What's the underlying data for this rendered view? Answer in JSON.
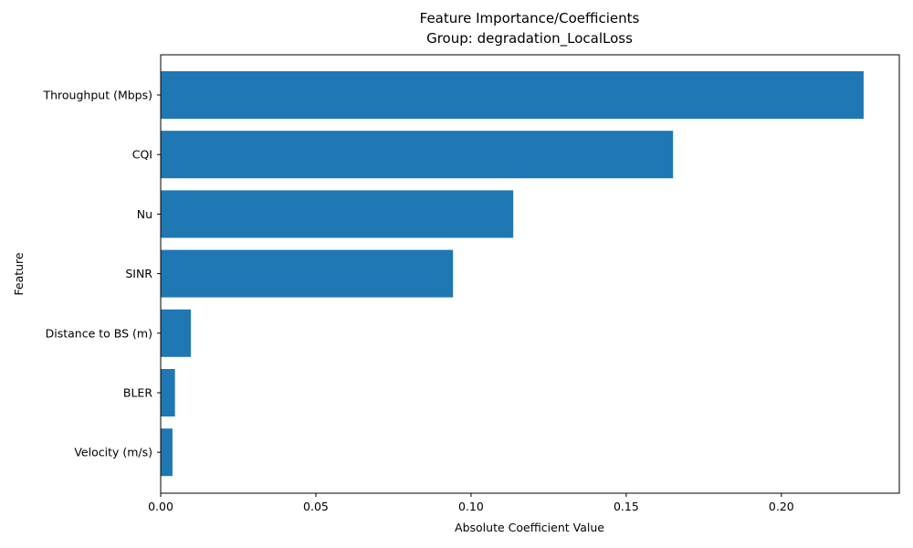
{
  "chart_data": {
    "type": "bar",
    "orientation": "horizontal",
    "title": "Feature Importance/Coefficients",
    "subtitle": "Group: degradation_LocalLoss",
    "xlabel": "Absolute Coefficient Value",
    "ylabel": "Feature",
    "categories": [
      "Throughput (Mbps)",
      "CQI",
      "Nu",
      "SINR",
      "Distance to BS (m)",
      "BLER",
      "Velocity (m/s)"
    ],
    "values": [
      0.2265,
      0.1651,
      0.1136,
      0.0942,
      0.0097,
      0.0046,
      0.0038
    ],
    "xlim": [
      0,
      0.238
    ],
    "xticks": [
      0.0,
      0.05,
      0.1,
      0.15,
      0.2
    ],
    "xtick_labels": [
      "0.00",
      "0.05",
      "0.10",
      "0.15",
      "0.20"
    ],
    "bar_color": "#1f77b4",
    "grid": false,
    "legend": "none"
  }
}
